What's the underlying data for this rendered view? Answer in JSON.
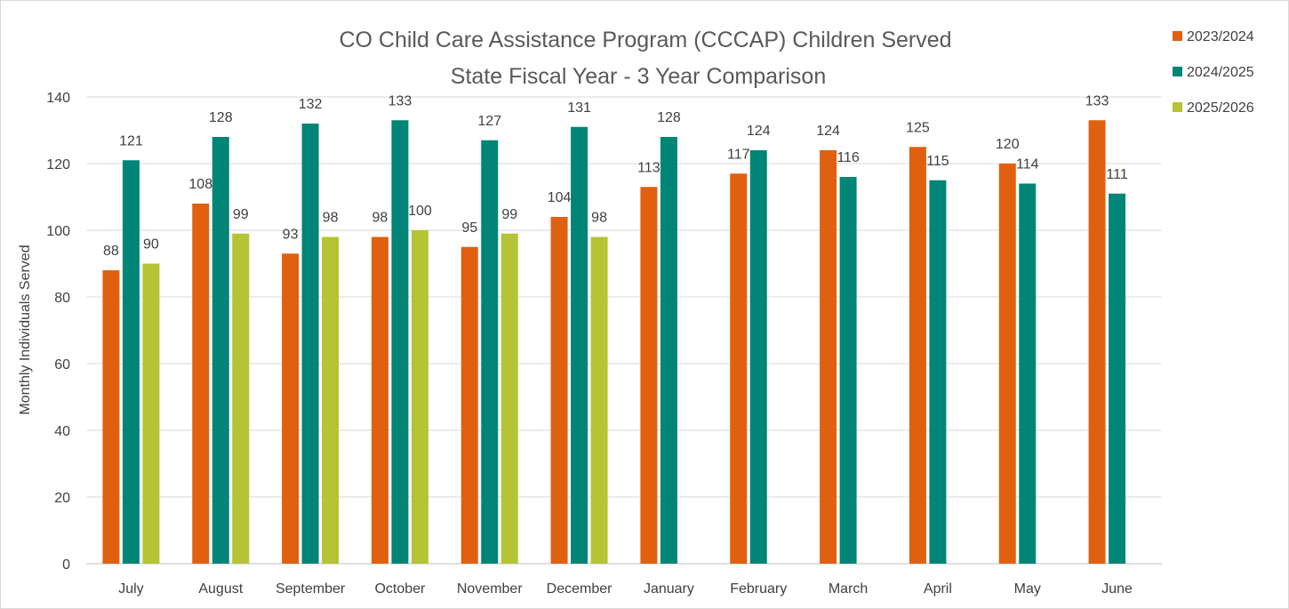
{
  "chart_data": {
    "type": "bar",
    "title": "CO Child Care Assistance Program (CCCAP) Children Served",
    "subtitle": "State Fiscal Year - 3 Year Comparison",
    "xlabel": "",
    "ylabel": "Monthly Individuals Served",
    "ylim": [
      0,
      140
    ],
    "yticks": [
      0,
      20,
      40,
      60,
      80,
      100,
      120,
      140
    ],
    "grid": true,
    "legend_position": "top-right",
    "categories": [
      "July",
      "August",
      "September",
      "October",
      "November",
      "December",
      "January",
      "February",
      "March",
      "April",
      "May",
      "June"
    ],
    "series": [
      {
        "name": "2023/2024",
        "color": "#E06010",
        "values": [
          88,
          108,
          93,
          98,
          95,
          104,
          113,
          117,
          124,
          125,
          120,
          133
        ]
      },
      {
        "name": "2024/2025",
        "color": "#008577",
        "values": [
          121,
          128,
          132,
          133,
          127,
          131,
          128,
          124,
          116,
          115,
          114,
          111
        ]
      },
      {
        "name": "2025/2026",
        "color": "#B5C334",
        "values": [
          90,
          99,
          98,
          100,
          99,
          98,
          null,
          null,
          null,
          null,
          null,
          null
        ]
      }
    ]
  }
}
